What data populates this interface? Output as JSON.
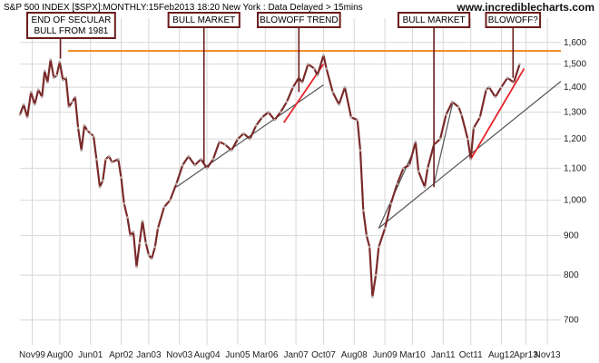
{
  "header": {
    "title": "S&P 500 INDEX [$SPX]:MONTHLY:15Feb2013 18:20 New York : Data Delayed > 15mins",
    "site": "www.incrediblecharts.com"
  },
  "colors": {
    "price_line": "#7a2a2a",
    "resistance": "#f08a1c",
    "trendline": "#555555",
    "blowoff": "#e8232b",
    "grid": "#d8d8d8",
    "annotation_border": "#6b1b1b"
  },
  "chart_data": {
    "type": "line",
    "scale": "log",
    "ylim": [
      650,
      1720
    ],
    "yticks": [
      700,
      800,
      900,
      1000,
      1100,
      1200,
      1300,
      1400,
      1500,
      1600
    ],
    "ytick_labels": [
      "700",
      "800",
      "900",
      "1,000",
      "1,100",
      "1,200",
      "1,300",
      "1,400",
      "1,500",
      "1,600"
    ],
    "xlim": [
      1999.5,
      2014.2
    ],
    "xticks": [
      1999.833,
      2000.583,
      2001.417,
      2002.25,
      2003.0,
      2003.833,
      2004.583,
      2005.417,
      2006.167,
      2007.0,
      2007.75,
      2008.583,
      2009.417,
      2010.167,
      2011.0,
      2011.75,
      2012.583,
      2013.25,
      2013.833
    ],
    "xtick_labels": [
      "Nov99",
      "Aug00",
      "Jun01",
      "Apr02",
      "Jan03",
      "Nov03",
      "Aug04",
      "Jun05",
      "Mar06",
      "Jan07",
      "Oct07",
      "Aug08",
      "Jun09",
      "Mar10",
      "Jan11",
      "Oct11",
      "Aug12",
      "Apr13",
      "Nov13"
    ],
    "grid": true,
    "series": [
      {
        "x": [
          1999.5,
          1999.6,
          1999.7,
          1999.8,
          1999.9,
          2000.0,
          2000.1,
          2000.17,
          2000.25,
          2000.33,
          2000.42,
          2000.5,
          2000.58,
          2000.67,
          2000.75,
          2000.83,
          2000.92,
          2001.0,
          2001.08,
          2001.17,
          2001.25,
          2001.33,
          2001.42,
          2001.5,
          2001.58,
          2001.67,
          2001.75,
          2001.83,
          2001.92,
          2002.0,
          2002.17,
          2002.25,
          2002.33,
          2002.42,
          2002.5,
          2002.58,
          2002.67,
          2002.75,
          2002.83,
          2002.92,
          2003.0,
          2003.08,
          2003.17,
          2003.25,
          2003.42,
          2003.58,
          2003.75,
          2003.92,
          2004.08,
          2004.25,
          2004.42,
          2004.58,
          2004.75,
          2004.92,
          2005.08,
          2005.25,
          2005.42,
          2005.58,
          2005.75,
          2005.92,
          2006.08,
          2006.25,
          2006.42,
          2006.58,
          2006.75,
          2006.92,
          2007.08,
          2007.17,
          2007.33,
          2007.5,
          2007.58,
          2007.75,
          2007.83,
          2008.0,
          2008.17,
          2008.33,
          2008.5,
          2008.67,
          2008.75,
          2008.83,
          2008.92,
          2009.0,
          2009.08,
          2009.17,
          2009.25,
          2009.42,
          2009.58,
          2009.75,
          2009.92,
          2010.08,
          2010.25,
          2010.33,
          2010.5,
          2010.58,
          2010.75,
          2010.92,
          2011.08,
          2011.25,
          2011.42,
          2011.5,
          2011.67,
          2011.75,
          2011.83,
          2012.0,
          2012.17,
          2012.25,
          2012.42,
          2012.58,
          2012.75,
          2012.92,
          2013.08
        ],
        "values": [
          1290,
          1330,
          1280,
          1380,
          1330,
          1390,
          1360,
          1470,
          1420,
          1520,
          1440,
          1450,
          1510,
          1430,
          1440,
          1320,
          1340,
          1360,
          1240,
          1160,
          1250,
          1230,
          1220,
          1210,
          1130,
          1040,
          1060,
          1130,
          1140,
          1120,
          1130,
          1070,
          990,
          950,
          900,
          910,
          820,
          880,
          940,
          880,
          850,
          840,
          870,
          920,
          980,
          1000,
          1050,
          1110,
          1140,
          1110,
          1130,
          1100,
          1130,
          1190,
          1180,
          1160,
          1200,
          1220,
          1200,
          1250,
          1280,
          1300,
          1270,
          1300,
          1340,
          1400,
          1440,
          1420,
          1500,
          1480,
          1450,
          1540,
          1480,
          1380,
          1330,
          1400,
          1280,
          1270,
          1160,
          970,
          900,
          870,
          750,
          800,
          870,
          920,
          990,
          1050,
          1100,
          1110,
          1190,
          1090,
          1040,
          1100,
          1180,
          1200,
          1290,
          1340,
          1320,
          1290,
          1200,
          1130,
          1240,
          1280,
          1390,
          1400,
          1360,
          1400,
          1440,
          1420,
          1500
        ]
      }
    ],
    "resistance_level": 1560,
    "trendlines": [
      {
        "role": "trend",
        "x": [
          2003.75,
          2007.75
        ],
        "y": [
          1040,
          1410
        ]
      },
      {
        "role": "trend",
        "x": [
          2009.25,
          2014.2
        ],
        "y": [
          920,
          1425
        ]
      },
      {
        "role": "trend",
        "x": [
          2011.75,
          2013.2
        ],
        "y": [
          1130,
          1480
        ]
      },
      {
        "role": "trend",
        "x": [
          2010.75,
          2011.25
        ],
        "y": [
          1050,
          1330
        ]
      },
      {
        "role": "trend",
        "x": [
          2009.25,
          2010.17
        ],
        "y": [
          920,
          1150
        ]
      },
      {
        "role": "blowoff",
        "x": [
          2006.67,
          2007.75
        ],
        "y": [
          1260,
          1500
        ]
      },
      {
        "role": "blowoff",
        "x": [
          2011.75,
          2013.2
        ],
        "y": [
          1130,
          1480
        ]
      }
    ],
    "annotations": [
      {
        "lines": [
          "END OF SECULAR",
          "BULL FROM 1981"
        ],
        "target_x": 2000.6,
        "target_y": 1525
      },
      {
        "lines": [
          "BULL MARKET"
        ],
        "target_x": 2004.5,
        "target_y": 1115
      },
      {
        "lines": [
          "BLOWOFF TREND"
        ],
        "target_x": 2007.08,
        "target_y": 1380
      },
      {
        "lines": [
          "BULL MARKET"
        ],
        "target_x": 2010.75,
        "target_y": 1040
      },
      {
        "lines": [
          "BLOWOFF?"
        ],
        "target_x": 2012.9,
        "target_y": 1440
      }
    ]
  }
}
